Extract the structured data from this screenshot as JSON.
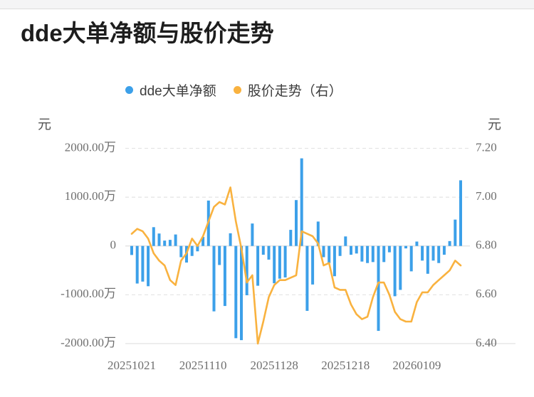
{
  "header": {
    "title": "dde大单净额与股价走势"
  },
  "legend": {
    "items": [
      {
        "label": "dde大单净额",
        "color": "#3CA0E9"
      },
      {
        "label": "股价走势（右）",
        "color": "#F9B23F"
      }
    ]
  },
  "chart_data": {
    "type": "bar+line",
    "title": "dde大单净额与股价走势",
    "legend_position": "top",
    "grid": "horizontal-dashed",
    "left_axis": {
      "unit": "元",
      "tick_labels": [
        "2000.00万",
        "1000.00万",
        "0",
        "-1000.00万",
        "-2000.00万"
      ],
      "tick_values_wan": [
        2000,
        1000,
        0,
        -1000,
        -2000
      ],
      "range_wan": [
        -2000,
        2000
      ]
    },
    "right_axis": {
      "unit": "元",
      "tick_labels": [
        "7.20",
        "7.00",
        "6.80",
        "6.60",
        "6.40"
      ],
      "tick_values": [
        7.2,
        7.0,
        6.8,
        6.6,
        6.4
      ],
      "range": [
        6.4,
        7.2
      ]
    },
    "x_axis": {
      "tick_labels": [
        "20251021",
        "20251110",
        "20251128",
        "20251218",
        "20260109"
      ],
      "tick_indices": [
        0,
        13,
        26,
        39,
        52
      ],
      "num_points": 61
    },
    "series": [
      {
        "name": "dde大单净额",
        "type": "bar",
        "axis": "left",
        "unit": "万",
        "color": "#3CA0E9",
        "values": [
          -185,
          -770,
          -730,
          -825,
          385,
          255,
          110,
          125,
          235,
          -230,
          -340,
          -205,
          -110,
          185,
          930,
          -1340,
          -390,
          -1230,
          260,
          -1890,
          -1930,
          -1010,
          460,
          -815,
          -180,
          -280,
          -765,
          -670,
          -645,
          330,
          940,
          1795,
          -1330,
          -790,
          500,
          -230,
          -350,
          -620,
          -205,
          195,
          -180,
          -155,
          -320,
          -350,
          -330,
          -1740,
          -330,
          -130,
          -1030,
          -900,
          -50,
          -520,
          90,
          -300,
          -570,
          -300,
          -350,
          -180,
          100,
          540,
          1345
        ]
      },
      {
        "name": "股价走势（右）",
        "type": "line",
        "axis": "right",
        "unit": "元",
        "color": "#F9B23F",
        "values": [
          6.85,
          6.87,
          6.86,
          6.83,
          6.77,
          6.74,
          6.72,
          6.66,
          6.64,
          6.74,
          6.77,
          6.83,
          6.8,
          6.84,
          6.9,
          6.96,
          6.98,
          6.97,
          7.04,
          6.9,
          6.79,
          6.65,
          6.68,
          6.4,
          6.49,
          6.59,
          6.64,
          6.66,
          6.66,
          6.67,
          6.68,
          6.86,
          6.85,
          6.84,
          6.81,
          6.72,
          6.73,
          6.63,
          6.62,
          6.62,
          6.56,
          6.52,
          6.5,
          6.51,
          6.59,
          6.65,
          6.65,
          6.6,
          6.53,
          6.5,
          6.49,
          6.49,
          6.57,
          6.61,
          6.61,
          6.64,
          6.66,
          6.68,
          6.7,
          6.74,
          6.72
        ]
      }
    ]
  }
}
